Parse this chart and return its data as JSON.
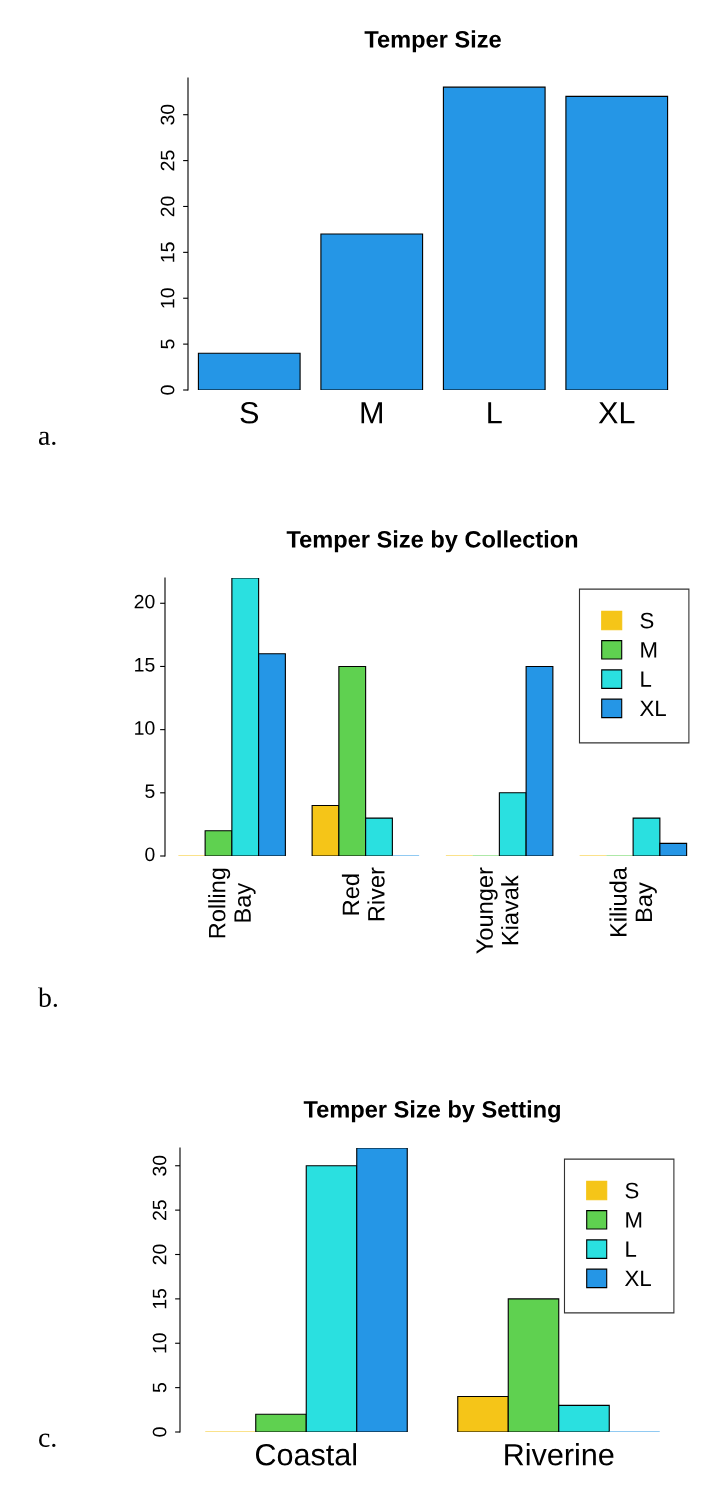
{
  "chart_data": [
    {
      "type": "bar",
      "title": "Temper Size",
      "categories": [
        "S",
        "M",
        "L",
        "XL"
      ],
      "values": [
        4,
        17,
        33,
        32
      ],
      "color": "#2596e6",
      "ylim": [
        0,
        34
      ],
      "yticks": [
        0,
        5,
        10,
        15,
        20,
        25,
        30
      ],
      "grid": false,
      "legend": false,
      "annotations": [
        "a."
      ]
    },
    {
      "type": "bar",
      "title": "Temper Size by Collection",
      "categories": [
        "Rolling\nBay",
        "Red\nRiver",
        "Younger\nKiavak",
        "Kiliuda\nBay"
      ],
      "series": [
        {
          "name": "S",
          "color": "#f5c518",
          "values": [
            0,
            4,
            0,
            0
          ]
        },
        {
          "name": "M",
          "color": "#5fd150",
          "values": [
            2,
            15,
            0,
            0
          ]
        },
        {
          "name": "L",
          "color": "#2ae0e0",
          "values": [
            22,
            3,
            5,
            3
          ]
        },
        {
          "name": "XL",
          "color": "#2596e6",
          "values": [
            16,
            0,
            15,
            1
          ]
        }
      ],
      "ylim": [
        0,
        22
      ],
      "yticks": [
        0,
        5,
        10,
        15,
        20
      ],
      "grid": false,
      "legend": "top right",
      "annotations": [
        "b."
      ]
    },
    {
      "type": "bar",
      "title": "Temper Size by Setting",
      "categories": [
        "Coastal",
        "Riverine"
      ],
      "series": [
        {
          "name": "S",
          "color": "#f5c518",
          "values": [
            0,
            4
          ]
        },
        {
          "name": "M",
          "color": "#5fd150",
          "values": [
            2,
            15
          ]
        },
        {
          "name": "L",
          "color": "#2ae0e0",
          "values": [
            30,
            3
          ]
        },
        {
          "name": "XL",
          "color": "#2596e6",
          "values": [
            32,
            0
          ]
        }
      ],
      "ylim": [
        0,
        32
      ],
      "yticks": [
        0,
        5,
        10,
        15,
        20,
        25,
        30
      ],
      "grid": false,
      "legend": "top right",
      "annotations": [
        "c."
      ]
    }
  ]
}
